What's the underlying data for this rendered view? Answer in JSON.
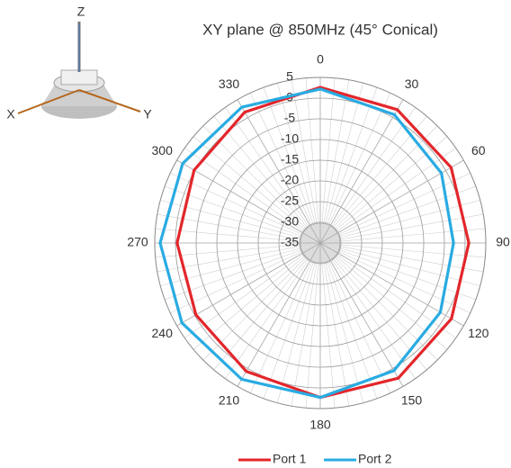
{
  "chart_data": {
    "type": "polar",
    "title": "XY plane @ 850MHz (45° Conical)",
    "theta": [
      0,
      30,
      60,
      90,
      120,
      150,
      180,
      210,
      240,
      270,
      300,
      330
    ],
    "series": [
      {
        "name": "Port 1",
        "color": "#e3262b",
        "values": [
          2.6,
          2.2,
          1.5,
          0.9,
          1.6,
          2.7,
          2.3,
          0.8,
          -0.3,
          -0.4,
          0.2,
          1.5
        ]
      },
      {
        "name": "Port 2",
        "color": "#29abe2",
        "values": [
          2.2,
          0.8,
          -1.2,
          -2.8,
          -1.5,
          0.6,
          2.3,
          3.0,
          3.6,
          3.7,
          3.4,
          2.9
        ]
      }
    ],
    "rlim": [
      -35,
      5
    ],
    "rticks": [
      5,
      0,
      -5,
      -10,
      -15,
      -20,
      -25,
      -30,
      -35
    ],
    "thetaticks": [
      0,
      30,
      60,
      90,
      120,
      150,
      180,
      210,
      240,
      270,
      300,
      330
    ],
    "legend": "bottom"
  },
  "inset_axes": {
    "z": "Z",
    "x": "X",
    "y": "Y"
  }
}
